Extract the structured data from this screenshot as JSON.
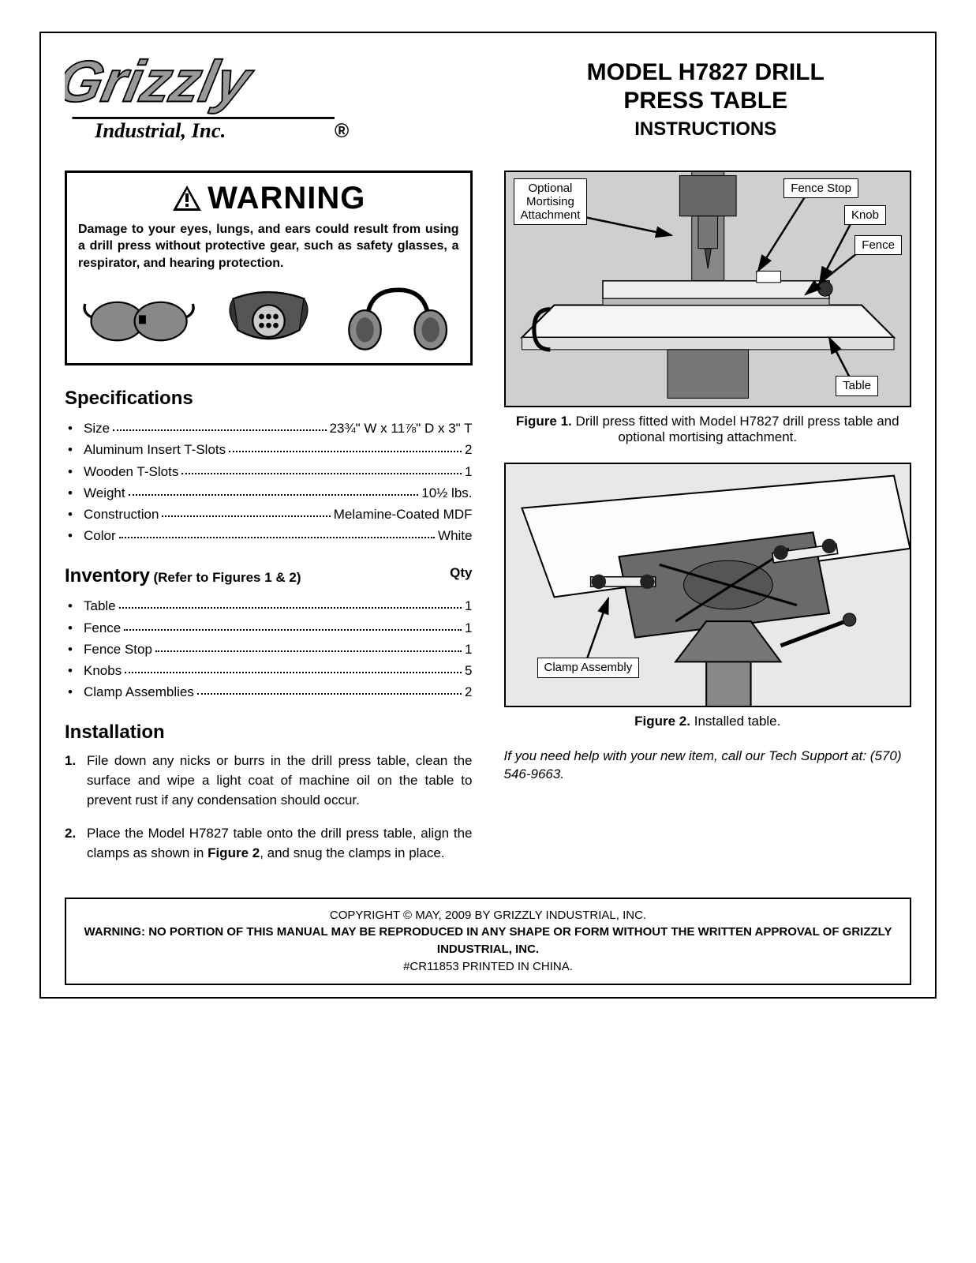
{
  "header": {
    "company": "Grizzly",
    "company_sub": "Industrial, Inc.",
    "model_line1": "MODEL H7827 DRILL",
    "model_line2": "PRESS TABLE",
    "instructions": "INSTRUCTIONS"
  },
  "warning": {
    "title": "WARNING",
    "text": "Damage to your eyes, lungs, and ears could result from using a drill press without protective gear, such as safety glasses, a respirator, and hearing protection.",
    "icons": [
      "safety-glasses",
      "respirator",
      "hearing-protection"
    ]
  },
  "specifications": {
    "heading": "Specifications",
    "items": [
      {
        "label": "Size",
        "value": "23¾\" W x 11⅞\" D x 3\" T"
      },
      {
        "label": "Aluminum Insert T-Slots",
        "value": "2"
      },
      {
        "label": "Wooden T-Slots",
        "value": "1"
      },
      {
        "label": "Weight",
        "value": "10½ lbs."
      },
      {
        "label": "Construction",
        "value": "Melamine-Coated MDF"
      },
      {
        "label": "Color",
        "value": "White"
      }
    ]
  },
  "inventory": {
    "heading": "Inventory",
    "refer": "(Refer to Figures 1 & 2)",
    "qty_label": "Qty",
    "items": [
      {
        "label": "Table",
        "value": "1"
      },
      {
        "label": "Fence",
        "value": "1"
      },
      {
        "label": "Fence Stop",
        "value": "1"
      },
      {
        "label": "Knobs",
        "value": "5"
      },
      {
        "label": "Clamp Assemblies",
        "value": "2"
      }
    ]
  },
  "installation": {
    "heading": "Installation",
    "steps": [
      "File down any nicks or burrs in the drill press table, clean the surface and wipe a light coat of machine oil on the table to prevent rust if any condensation should occur.",
      "Place the Model H7827 table onto the drill press table, align the clamps as shown in <b>Figure 2</b>, and snug the clamps in place."
    ]
  },
  "figure1": {
    "caption_bold": "Figure 1.",
    "caption_rest": " Drill press fitted with Model H7827 drill press table and optional mortising attachment.",
    "labels": {
      "mortising": "Optional\nMortising\nAttachment",
      "fence_stop": "Fence Stop",
      "knob": "Knob",
      "fence": "Fence",
      "table": "Table"
    }
  },
  "figure2": {
    "caption_bold": "Figure 2.",
    "caption_rest": " Installed table.",
    "labels": {
      "clamp": "Clamp Assembly"
    }
  },
  "tech_support": "If you need help with your new item, call our Tech Support at: (570) 546-9663.",
  "footer": {
    "copyright": "COPYRIGHT © MAY, 2009 BY GRIZZLY INDUSTRIAL, INC.",
    "warning": "WARNING: NO PORTION OF THIS MANUAL MAY BE REPRODUCED IN ANY SHAPE OR FORM WITHOUT THE WRITTEN APPROVAL OF GRIZZLY INDUSTRIAL, INC.",
    "doc_id": "#CR11853  PRINTED IN CHINA."
  },
  "colors": {
    "text": "#000000",
    "background": "#ffffff",
    "figure_bg": "#d8d8d8",
    "logo_gray": "#888888"
  }
}
